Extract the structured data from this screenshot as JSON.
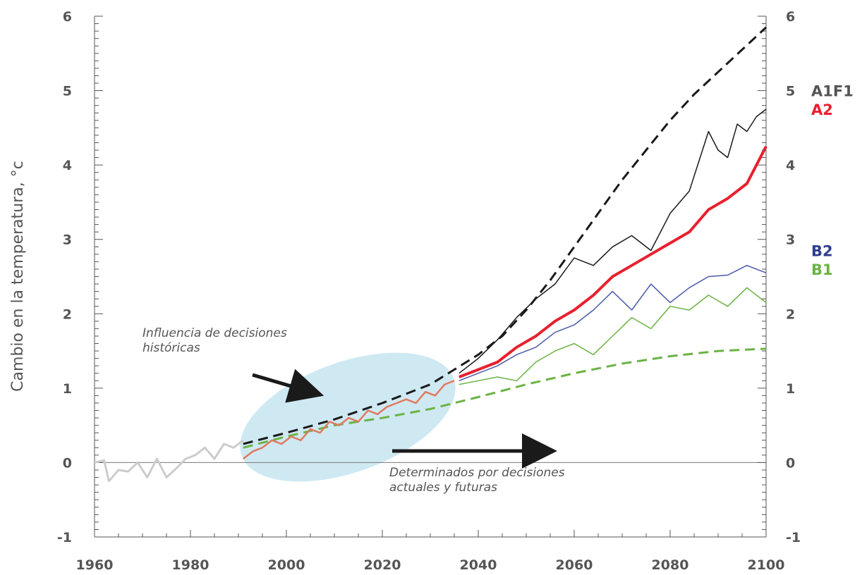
{
  "chart_data": {
    "type": "line",
    "ylabel": "Cambio en la temperatura, °c",
    "xlabel": "",
    "xlim": [
      1960,
      2100
    ],
    "ylim": [
      -1,
      6
    ],
    "x_ticks": [
      "1960",
      "1980",
      "2000",
      "2020",
      "2040",
      "2060",
      "2080",
      "2100"
    ],
    "y_ticks": [
      "-1",
      "0",
      "1",
      "2",
      "3",
      "4",
      "5",
      "6"
    ],
    "scenario_labels": [
      {
        "text": "A1F1",
        "color": "#555555",
        "y": 5.0
      },
      {
        "text": "A2",
        "color": "#e8202e",
        "y": 4.75
      },
      {
        "text": "B2",
        "color": "#2e3d8f",
        "y": 2.85
      },
      {
        "text": "B1",
        "color": "#6ab344",
        "y": 2.6
      }
    ],
    "annotations": [
      {
        "lines": [
          "Influencia de decisiones",
          "históricas"
        ]
      },
      {
        "lines": [
          "Determinados por decisiones",
          "actuales y futuras"
        ]
      }
    ],
    "colors": {
      "historical": "#cccccc",
      "A1F1": "#1a1a1a",
      "A2": "#e8202e",
      "B2": "#4a5aa8",
      "B1": "#6ab344",
      "overlap": "#e07a5f",
      "ellipse": "#cfe9f3"
    },
    "series": [
      {
        "name": "Histórico",
        "color": "#cccccc",
        "x": [
          1960,
          1962,
          1963,
          1965,
          1967,
          1969,
          1971,
          1973,
          1975,
          1977,
          1979,
          1981,
          1983,
          1985,
          1987,
          1989,
          1991
        ],
        "y": [
          0.0,
          0.03,
          -0.25,
          -0.1,
          -0.12,
          0.0,
          -0.2,
          0.05,
          -0.2,
          -0.08,
          0.05,
          0.1,
          0.2,
          0.05,
          0.25,
          0.2,
          0.3
        ]
      },
      {
        "name": "A1F1 tendencia",
        "style": "dashed",
        "color": "#1a1a1a",
        "x": [
          1991,
          2000,
          2010,
          2020,
          2030,
          2035,
          2040,
          2045,
          2050,
          2055,
          2060,
          2065,
          2070,
          2075,
          2080,
          2085,
          2090,
          2095,
          2100
        ],
        "y": [
          0.25,
          0.4,
          0.58,
          0.8,
          1.05,
          1.25,
          1.45,
          1.7,
          2.05,
          2.45,
          2.9,
          3.35,
          3.8,
          4.2,
          4.6,
          4.95,
          5.25,
          5.55,
          5.85
        ]
      },
      {
        "name": "B1 tendencia",
        "style": "dashed",
        "color": "#6ab344",
        "x": [
          1991,
          2000,
          2010,
          2020,
          2030,
          2040,
          2050,
          2060,
          2070,
          2080,
          2090,
          2100
        ],
        "y": [
          0.2,
          0.35,
          0.5,
          0.6,
          0.72,
          0.88,
          1.05,
          1.2,
          1.33,
          1.43,
          1.5,
          1.53
        ]
      },
      {
        "name": "A1F1",
        "color": "#1a1a1a",
        "x": [
          2036,
          2040,
          2044,
          2048,
          2052,
          2056,
          2060,
          2064,
          2068,
          2072,
          2076,
          2080,
          2084,
          2088,
          2090,
          2092,
          2094,
          2096,
          2098,
          2100
        ],
        "y": [
          1.2,
          1.4,
          1.65,
          1.95,
          2.2,
          2.4,
          2.75,
          2.65,
          2.9,
          3.05,
          2.85,
          3.35,
          3.65,
          4.45,
          4.2,
          4.1,
          4.55,
          4.45,
          4.65,
          4.75
        ]
      },
      {
        "name": "A2",
        "color": "#e8202e",
        "x": [
          2036,
          2040,
          2044,
          2048,
          2052,
          2056,
          2060,
          2064,
          2068,
          2072,
          2076,
          2080,
          2084,
          2088,
          2092,
          2096,
          2100
        ],
        "y": [
          1.15,
          1.25,
          1.35,
          1.55,
          1.7,
          1.9,
          2.05,
          2.25,
          2.5,
          2.65,
          2.8,
          2.95,
          3.1,
          3.4,
          3.55,
          3.75,
          4.25
        ]
      },
      {
        "name": "B2",
        "color": "#4a5aa8",
        "x": [
          2036,
          2040,
          2044,
          2048,
          2052,
          2056,
          2060,
          2064,
          2068,
          2072,
          2076,
          2080,
          2084,
          2088,
          2092,
          2096,
          2100
        ],
        "y": [
          1.1,
          1.2,
          1.3,
          1.45,
          1.55,
          1.75,
          1.85,
          2.05,
          2.3,
          2.05,
          2.4,
          2.15,
          2.35,
          2.5,
          2.52,
          2.65,
          2.55
        ]
      },
      {
        "name": "B1",
        "color": "#6ab344",
        "x": [
          2036,
          2040,
          2044,
          2048,
          2052,
          2056,
          2060,
          2064,
          2068,
          2072,
          2076,
          2080,
          2084,
          2088,
          2092,
          2096,
          2100
        ],
        "y": [
          1.05,
          1.1,
          1.15,
          1.1,
          1.35,
          1.5,
          1.6,
          1.45,
          1.7,
          1.95,
          1.8,
          2.1,
          2.05,
          2.25,
          2.1,
          2.35,
          2.15
        ]
      },
      {
        "name": "Superposición",
        "color": "#e07a5f",
        "x": [
          1991,
          1993,
          1995,
          1997,
          1999,
          2001,
          2003,
          2005,
          2007,
          2009,
          2011,
          2013,
          2015,
          2017,
          2019,
          2021,
          2023,
          2025,
          2027,
          2029,
          2031,
          2033,
          2035
        ],
        "y": [
          0.05,
          0.15,
          0.2,
          0.3,
          0.25,
          0.35,
          0.3,
          0.45,
          0.4,
          0.55,
          0.5,
          0.6,
          0.55,
          0.7,
          0.65,
          0.75,
          0.8,
          0.85,
          0.8,
          0.95,
          0.9,
          1.05,
          1.1
        ]
      }
    ]
  }
}
